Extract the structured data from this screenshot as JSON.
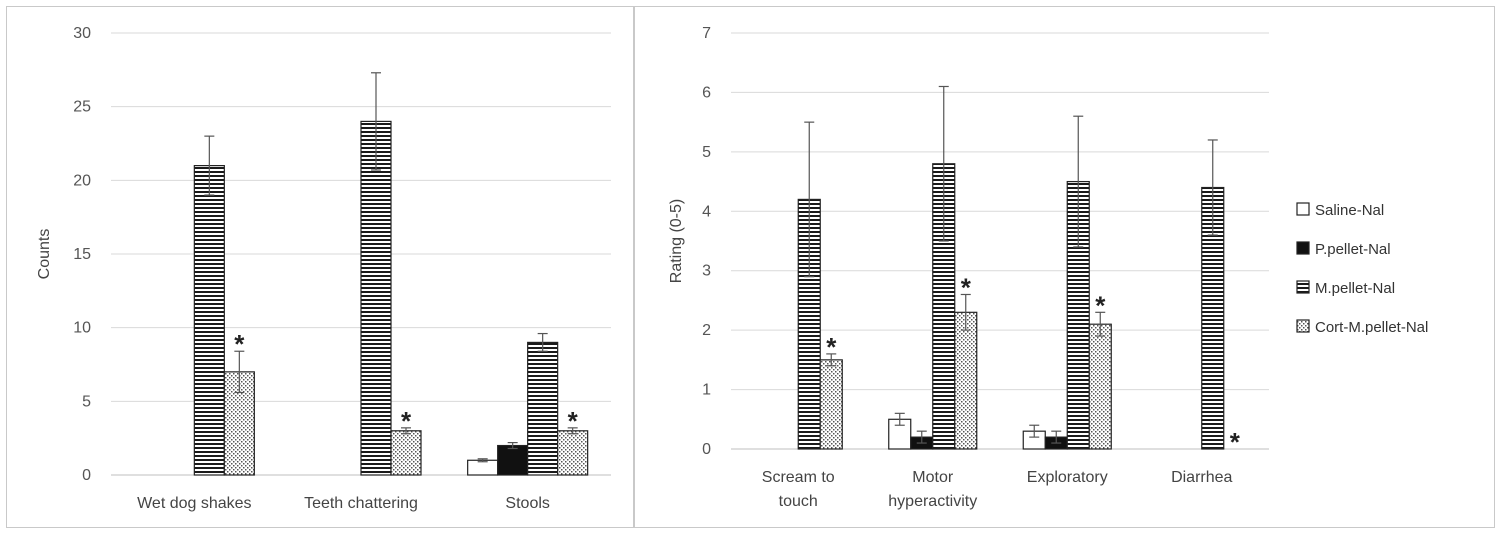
{
  "chart_data": [
    {
      "type": "bar",
      "ylabel": "Counts",
      "ylim": [
        0,
        30
      ],
      "yticks": [
        0,
        5,
        10,
        15,
        20,
        25,
        30
      ],
      "grid": true,
      "categories": [
        "Wet dog shakes",
        "Teeth chattering",
        "Stools"
      ],
      "series": [
        {
          "name": "Saline-Nal",
          "values": [
            0,
            0,
            1
          ],
          "errors": [
            0,
            0,
            0.1
          ],
          "pattern": "white"
        },
        {
          "name": "P.pellet-Nal",
          "values": [
            0,
            0,
            2
          ],
          "errors": [
            0,
            0,
            0.2
          ],
          "pattern": "black"
        },
        {
          "name": "M.pellet-Nal",
          "values": [
            21,
            24,
            9
          ],
          "errors": [
            2,
            3.3,
            0.6
          ],
          "pattern": "hlines"
        },
        {
          "name": "Cort-M.pellet-Nal",
          "values": [
            7,
            3,
            3
          ],
          "errors": [
            1.4,
            0.2,
            0.2
          ],
          "pattern": "dots"
        }
      ],
      "annotations": [
        {
          "category": 0,
          "series": 3,
          "text": "*"
        },
        {
          "category": 1,
          "series": 3,
          "text": "*"
        },
        {
          "category": 2,
          "series": 3,
          "text": "*"
        }
      ]
    },
    {
      "type": "bar",
      "ylabel": "Rating (0-5)",
      "ylim": [
        0,
        7
      ],
      "yticks": [
        0,
        1,
        2,
        3,
        4,
        5,
        6,
        7
      ],
      "grid": true,
      "legend": "right",
      "categories": [
        [
          "Scream to",
          "touch"
        ],
        [
          "Motor",
          "hyperactivity"
        ],
        [
          "Exploratory"
        ],
        [
          "Diarrhea"
        ]
      ],
      "series": [
        {
          "name": "Saline-Nal",
          "values": [
            0,
            0.5,
            0.3,
            0
          ],
          "errors": [
            0,
            0.1,
            0.1,
            0
          ],
          "pattern": "white"
        },
        {
          "name": "P.pellet-Nal",
          "values": [
            0,
            0.2,
            0.2,
            0
          ],
          "errors": [
            0,
            0.1,
            0.1,
            0
          ],
          "pattern": "black"
        },
        {
          "name": "M.pellet-Nal",
          "values": [
            4.2,
            4.8,
            4.5,
            4.4
          ],
          "errors": [
            1.3,
            1.3,
            1.1,
            0.8
          ],
          "pattern": "hlines"
        },
        {
          "name": "Cort-M.pellet-Nal",
          "values": [
            1.5,
            2.3,
            2.1,
            0
          ],
          "errors": [
            0.1,
            0.3,
            0.2,
            0
          ],
          "pattern": "dots"
        }
      ],
      "annotations": [
        {
          "category": 0,
          "series": 3,
          "text": "*"
        },
        {
          "category": 1,
          "series": 3,
          "text": "*"
        },
        {
          "category": 2,
          "series": 3,
          "text": "*"
        },
        {
          "category": 3,
          "series": 3,
          "text": "*"
        }
      ]
    }
  ]
}
